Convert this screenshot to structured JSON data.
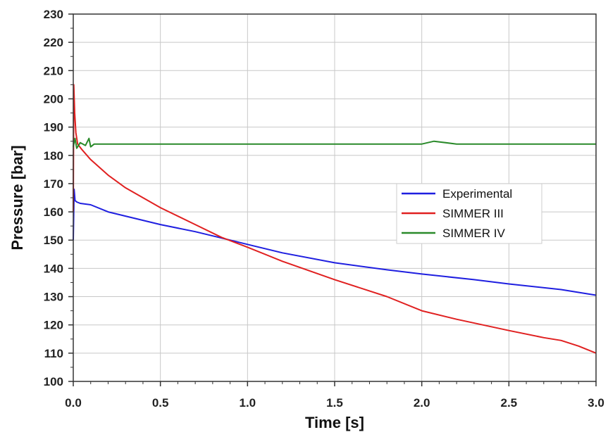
{
  "chart_data": {
    "type": "line",
    "xlabel": "Time [s]",
    "ylabel": "Pressure [bar]",
    "xlim": [
      0,
      3.0
    ],
    "ylim": [
      100,
      230
    ],
    "x_ticks": [
      "0.0",
      "0.5",
      "1.0",
      "1.5",
      "2.0",
      "2.5",
      "3.0"
    ],
    "y_ticks": [
      "100",
      "110",
      "120",
      "130",
      "140",
      "150",
      "160",
      "170",
      "180",
      "190",
      "200",
      "210",
      "220",
      "230"
    ],
    "grid": true,
    "legend_position": "center-right",
    "series": [
      {
        "name": "Experimental",
        "color": "#1f1fe0",
        "x": [
          0.0,
          0.005,
          0.01,
          0.02,
          0.04,
          0.1,
          0.2,
          0.3,
          0.5,
          0.7,
          0.9,
          1.0,
          1.2,
          1.5,
          1.8,
          2.0,
          2.3,
          2.5,
          2.8,
          3.0
        ],
        "y": [
          150,
          168,
          164,
          163.5,
          163,
          162.5,
          160,
          158.5,
          155.5,
          153,
          150,
          148.5,
          145.5,
          142,
          139.5,
          138,
          136,
          134.5,
          132.5,
          130.5
        ]
      },
      {
        "name": "SIMMER III",
        "color": "#e02020",
        "x": [
          0.0,
          0.003,
          0.008,
          0.015,
          0.025,
          0.05,
          0.1,
          0.2,
          0.3,
          0.5,
          0.7,
          0.85,
          1.0,
          1.2,
          1.5,
          1.8,
          2.0,
          2.2,
          2.5,
          2.7,
          2.8,
          2.9,
          3.0
        ],
        "y": [
          160,
          205,
          195,
          188,
          184,
          182,
          178.5,
          173,
          168.5,
          161.5,
          155.5,
          151,
          147.5,
          142.5,
          136,
          130,
          125,
          122,
          118,
          115.5,
          114.5,
          112.5,
          110
        ]
      },
      {
        "name": "SIMMER IV",
        "color": "#2a8a2a",
        "x": [
          0.0,
          0.01,
          0.02,
          0.04,
          0.07,
          0.09,
          0.1,
          0.12,
          0.2,
          0.5,
          1.0,
          1.5,
          2.0,
          2.07,
          2.2,
          2.5,
          3.0
        ],
        "y": [
          183,
          186,
          182.5,
          184.5,
          183.5,
          186,
          183,
          184,
          184,
          184,
          184,
          184,
          184,
          185,
          184,
          184,
          184
        ]
      }
    ]
  }
}
